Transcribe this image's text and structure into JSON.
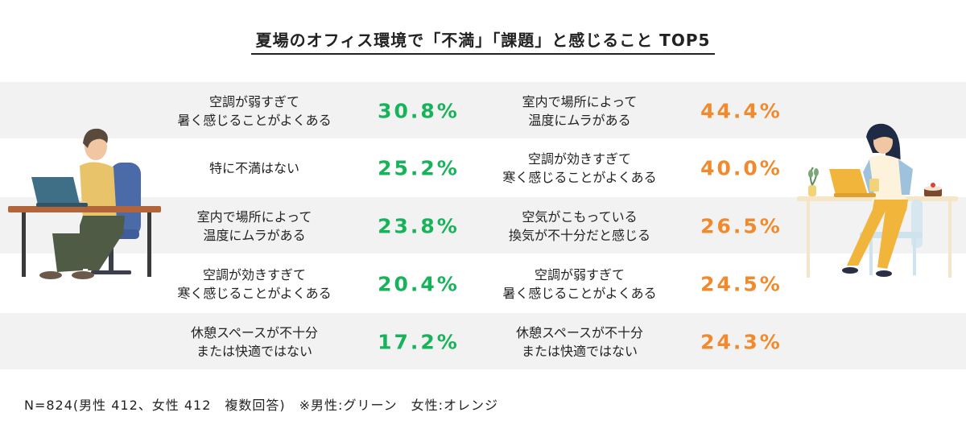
{
  "title": "夏場のオフィス環境で「不満」「課題」と感じること TOP5",
  "colors": {
    "male": "#17b35a",
    "female": "#f08a2c",
    "band": "#f2f2f2"
  },
  "chart_data": {
    "type": "table",
    "title": "夏場のオフィス環境で「不満」「課題」と感じること TOP5",
    "series": [
      {
        "name": "男性",
        "color": "#17b35a",
        "rows": [
          {
            "label": "空調が弱すぎて\n暑く感じることがよくある",
            "value": 30.8,
            "text": "30.8%"
          },
          {
            "label": "特に不満はない",
            "value": 25.2,
            "text": "25.2%"
          },
          {
            "label": "室内で場所によって\n温度にムラがある",
            "value": 23.8,
            "text": "23.8%"
          },
          {
            "label": "空調が効きすぎて\n寒く感じることがよくある",
            "value": 20.4,
            "text": "20.4%"
          },
          {
            "label": "休憩スペースが不十分\nまたは快適ではない",
            "value": 17.2,
            "text": "17.2%"
          }
        ]
      },
      {
        "name": "女性",
        "color": "#f08a2c",
        "rows": [
          {
            "label": "室内で場所によって\n温度にムラがある",
            "value": 44.4,
            "text": "44.4%"
          },
          {
            "label": "空調が効きすぎて\n寒く感じることがよくある",
            "value": 40.0,
            "text": "40.0%"
          },
          {
            "label": "空気がこもっている\n換気が不十分だと感じる",
            "value": 26.5,
            "text": "26.5%"
          },
          {
            "label": "空調が弱すぎて\n暑く感じることがよくある",
            "value": 24.5,
            "text": "24.5%"
          },
          {
            "label": "休憩スペースが不十分\nまたは快適ではない",
            "value": 24.3,
            "text": "24.3%"
          }
        ]
      }
    ]
  },
  "footer": "N=824(男性 412、女性 412　複数回答)　※男性:グリーン　女性:オレンジ",
  "illustrations": {
    "left": "man-at-laptop-desk-illustration",
    "right": "woman-at-laptop-table-illustration"
  }
}
